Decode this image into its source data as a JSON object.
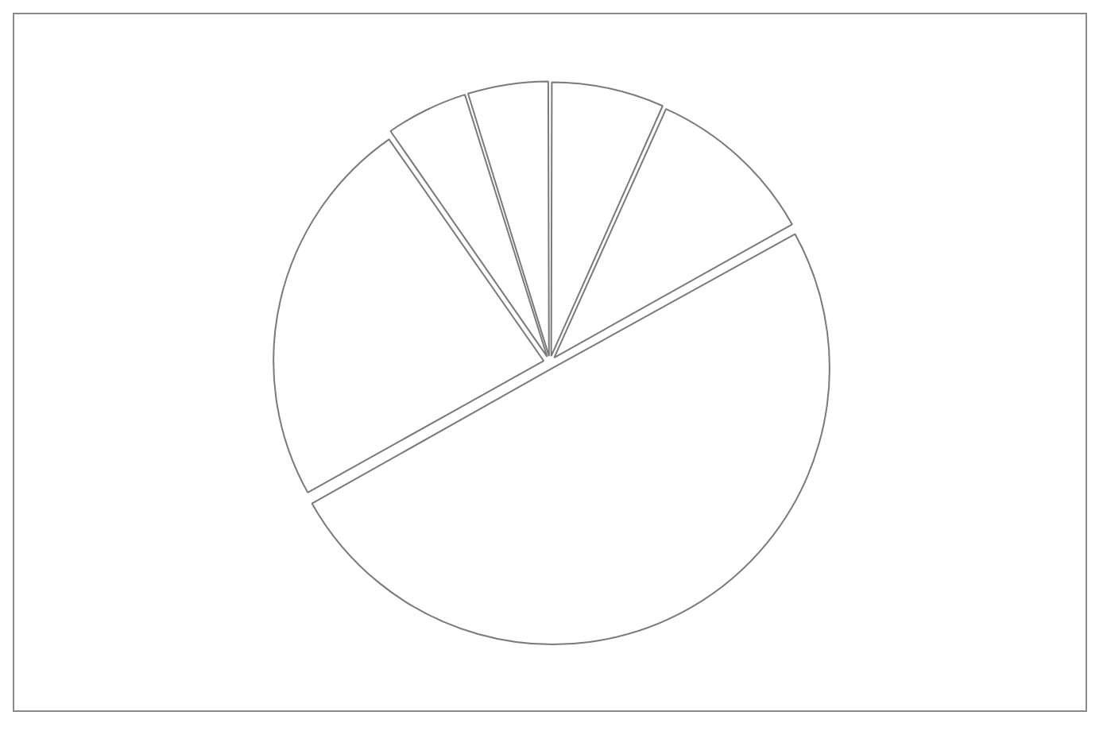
{
  "chart_data": {
    "type": "pie",
    "categories": [
      null,
      null,
      null,
      null,
      null,
      null
    ],
    "values": [
      6.7,
      10.2,
      50,
      23.4,
      4.9,
      4.8
    ],
    "colors": [
      "#ffffff",
      "#ffffff",
      "#ffffff",
      "#ffffff",
      "#ffffff",
      "#ffffff"
    ],
    "legend": false
  }
}
